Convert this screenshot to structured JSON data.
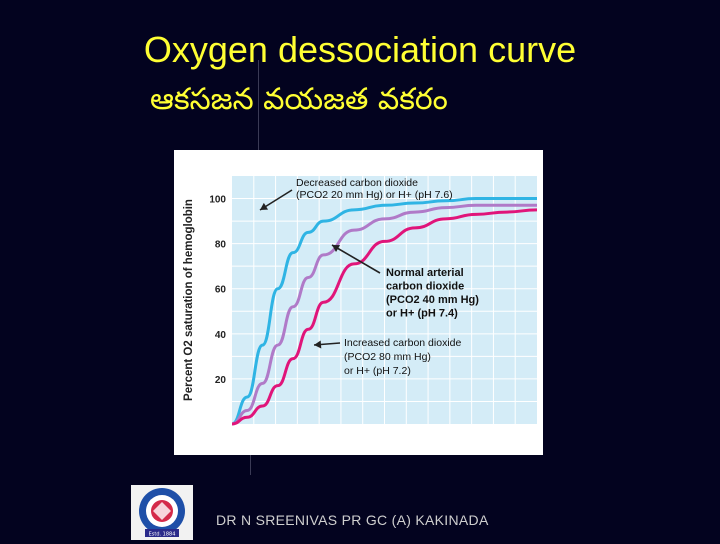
{
  "slide": {
    "title": "Oxygen dessociation curve",
    "subtitle": "ఆకసజన వయజత వకరం",
    "footer": "DR N SREENIVAS  PR GC (A) KAKINADA",
    "logo_text": "Estd. 1884"
  },
  "colors": {
    "background": "#03031f",
    "title": "#ffff33",
    "plot_bg": "#d4ecf7",
    "grid": "#ffffff",
    "decreased_co2": "#2fb4e4",
    "normal": "#b07ac8",
    "increased_co2": "#e0157a"
  },
  "chart_data": {
    "type": "line",
    "ylabel": "Percent O2 saturation of hemoglobin",
    "xlabel": "",
    "ylim": [
      0,
      110
    ],
    "xlim": [
      0,
      100
    ],
    "yticks": [
      20,
      40,
      60,
      80,
      100
    ],
    "grid": true,
    "series": [
      {
        "key": "decreased",
        "x": [
          0,
          5,
          10,
          15,
          20,
          25,
          30,
          40,
          50,
          60,
          70,
          80,
          90,
          100
        ],
        "values": [
          0,
          12,
          35,
          60,
          76,
          85,
          90,
          95,
          97,
          98,
          99,
          100,
          100,
          100
        ]
      },
      {
        "key": "normal",
        "x": [
          0,
          5,
          10,
          15,
          20,
          25,
          30,
          40,
          50,
          60,
          70,
          80,
          90,
          100
        ],
        "values": [
          0,
          6,
          18,
          35,
          52,
          65,
          75,
          86,
          91,
          94,
          96,
          97,
          97,
          97
        ]
      },
      {
        "key": "increased",
        "x": [
          0,
          5,
          10,
          15,
          20,
          25,
          30,
          40,
          50,
          60,
          70,
          80,
          90,
          100
        ],
        "values": [
          0,
          3,
          8,
          17,
          29,
          42,
          54,
          71,
          81,
          87,
          91,
          93,
          94,
          95
        ]
      }
    ],
    "annotations": [
      {
        "series": "decreased",
        "lines": [
          "Decreased carbon dioxide",
          "(PCO2 20 mm Hg) or H+ (pH 7.6)"
        ],
        "bold": false
      },
      {
        "series": "normal",
        "lines": [
          "Normal arterial",
          "carbon dioxide",
          "(PCO2 40 mm Hg)",
          "or H+ (pH 7.4)"
        ],
        "bold": true
      },
      {
        "series": "increased",
        "lines": [
          "Increased carbon dioxide",
          "(PCO2 80 mm Hg)",
          "or H+ (pH 7.2)"
        ],
        "bold": false
      }
    ]
  }
}
